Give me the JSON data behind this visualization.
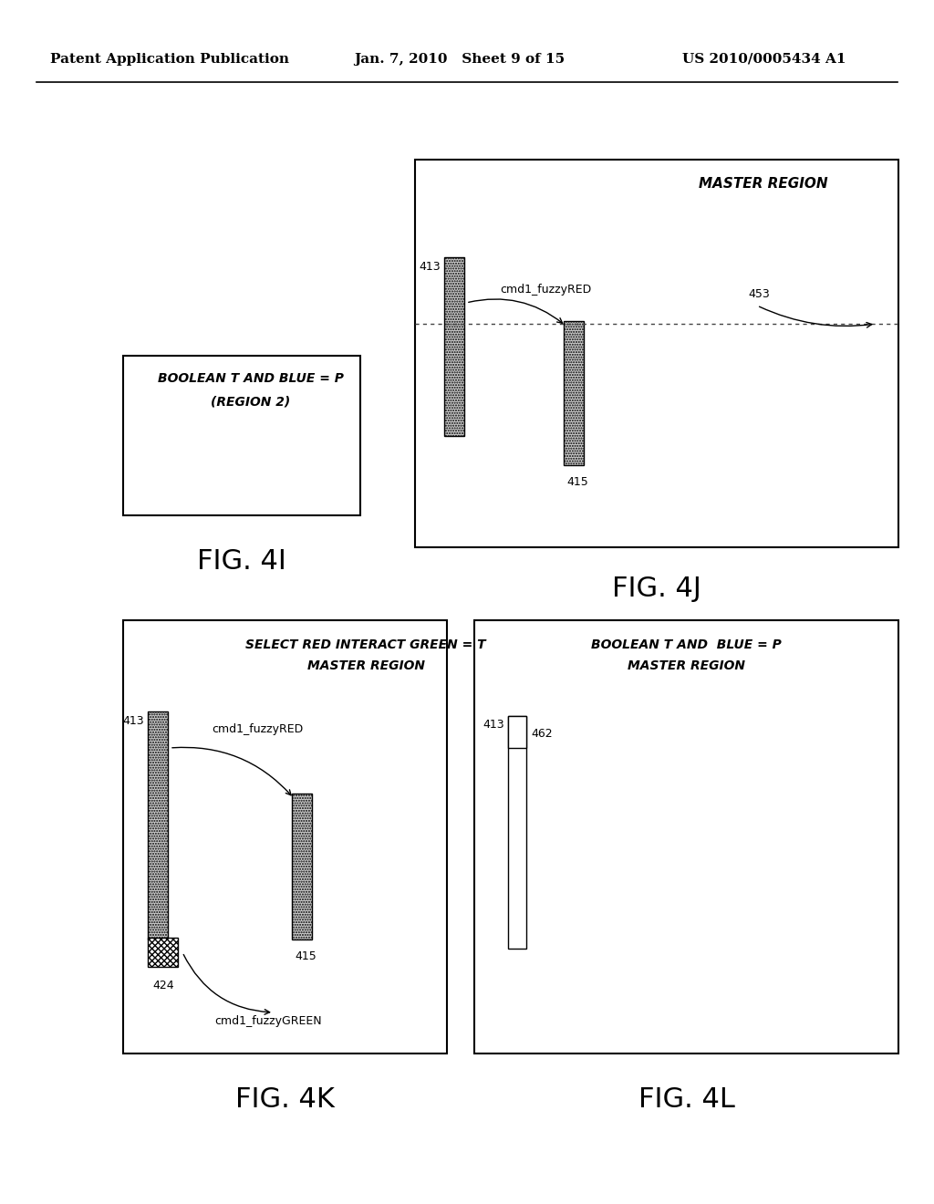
{
  "header_left": "Patent Application Publication",
  "header_mid": "Jan. 7, 2010   Sheet 9 of 15",
  "header_right": "US 2010/0005434 A1",
  "fig_4i": {
    "label": "FIG. 4I",
    "title_line1": "BOOLEAN T AND BLUE = P",
    "title_line2": "(REGION 2)"
  },
  "fig_4j": {
    "label": "FIG. 4J",
    "title": "MASTER REGION",
    "bar413_label": "413",
    "bar415_label": "415",
    "fuzzy_label": "cmd1_fuzzyRED",
    "arrow453_label": "453"
  },
  "fig_4k": {
    "label": "FIG. 4K",
    "title_line1": "SELECT RED INTERACT GREEN = T",
    "title_line2": "MASTER REGION",
    "bar413_label": "413",
    "bar415_label": "415",
    "bar424_label": "424",
    "fuzzy_red_label": "cmd1_fuzzyRED",
    "fuzzy_green_label": "cmd1_fuzzyGREEN"
  },
  "fig_4l": {
    "label": "FIG. 4L",
    "title_line1": "BOOLEAN T AND  BLUE = P",
    "title_line2": "MASTER REGION",
    "bar413_label": "413",
    "bar462_label": "462"
  },
  "bg_color": "#ffffff",
  "text_color": "#000000"
}
